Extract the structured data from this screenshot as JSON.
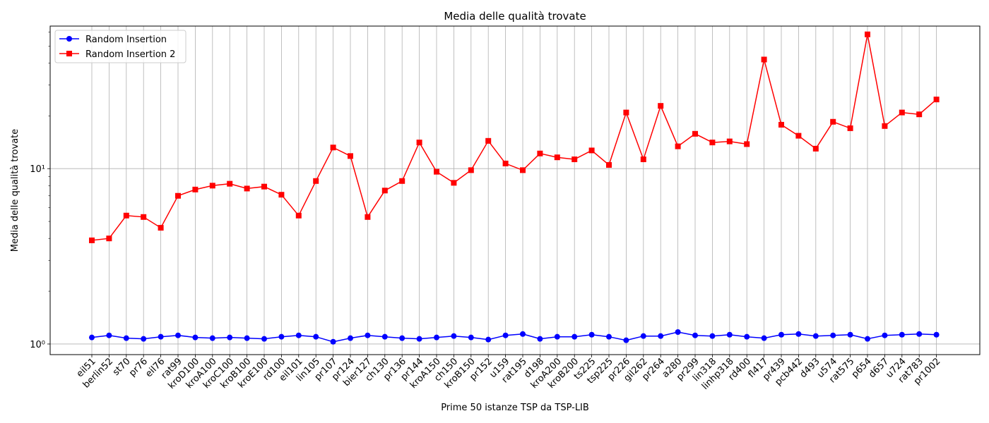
{
  "chart_data": {
    "type": "line",
    "title": "Media delle qualità trovate",
    "xlabel": "Prime 50 istanze TSP da TSP-LIB",
    "ylabel": "Media delle qualità trovate",
    "yscale": "log",
    "ylim": [
      0.87,
      65
    ],
    "y_ticks": [
      1,
      10
    ],
    "y_tick_labels": [
      "10⁰",
      "10¹"
    ],
    "grid": true,
    "legend_position": "top-left",
    "categories": [
      "eil51",
      "berlin52",
      "st70",
      "pr76",
      "eil76",
      "rat99",
      "kroD100",
      "kroA100",
      "kroC100",
      "kroB100",
      "kroE100",
      "rd100",
      "eil101",
      "lin105",
      "pr107",
      "pr124",
      "bier127",
      "ch130",
      "pr136",
      "pr144",
      "kroA150",
      "ch150",
      "kroB150",
      "pr152",
      "u159",
      "rat195",
      "d198",
      "kroA200",
      "kroB200",
      "ts225",
      "tsp225",
      "pr226",
      "gil262",
      "pr264",
      "a280",
      "pr299",
      "lin318",
      "linhp318",
      "rd400",
      "fl417",
      "pr439",
      "pcb442",
      "d493",
      "u574",
      "rat575",
      "p654",
      "d657",
      "u724",
      "rat783",
      "pr1002"
    ],
    "series": [
      {
        "name": "Random Insertion",
        "color": "#0000ff",
        "marker": "circle",
        "values": [
          1.09,
          1.12,
          1.08,
          1.07,
          1.1,
          1.12,
          1.09,
          1.08,
          1.09,
          1.08,
          1.07,
          1.1,
          1.12,
          1.1,
          1.03,
          1.08,
          1.12,
          1.1,
          1.08,
          1.07,
          1.09,
          1.11,
          1.09,
          1.06,
          1.12,
          1.14,
          1.07,
          1.1,
          1.1,
          1.13,
          1.1,
          1.05,
          1.11,
          1.11,
          1.17,
          1.12,
          1.11,
          1.13,
          1.1,
          1.08,
          1.13,
          1.14,
          1.11,
          1.12,
          1.13,
          1.07,
          1.12,
          1.13,
          1.14,
          1.13
        ]
      },
      {
        "name": "Random Insertion 2",
        "color": "#ff0000",
        "marker": "square",
        "values": [
          3.9,
          4.0,
          5.4,
          5.3,
          4.6,
          7.0,
          7.6,
          8.0,
          8.2,
          7.7,
          7.9,
          7.1,
          5.4,
          8.5,
          13.2,
          11.8,
          5.3,
          7.5,
          8.5,
          14.1,
          9.6,
          8.3,
          9.8,
          14.4,
          10.7,
          9.8,
          12.2,
          11.6,
          11.3,
          12.7,
          10.5,
          20.9,
          11.3,
          22.8,
          13.4,
          15.8,
          14.1,
          14.3,
          13.8,
          41.9,
          17.8,
          15.4,
          13.0,
          18.5,
          17.0,
          58.3,
          17.5,
          20.9,
          20.4,
          24.8
        ]
      }
    ]
  }
}
